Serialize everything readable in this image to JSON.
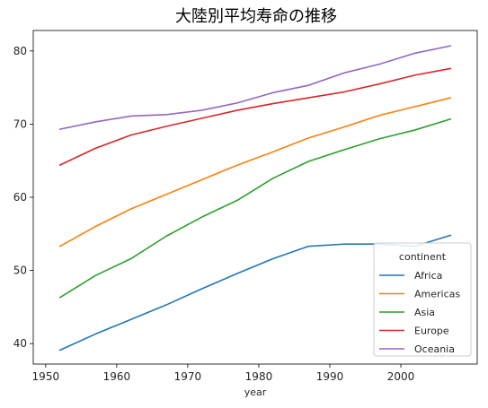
{
  "chart_data": {
    "type": "line",
    "title": "大陸別平均寿命の推移",
    "xlabel": "year",
    "ylabel": "",
    "xlim": [
      1948.25,
      2010.75
    ],
    "ylim": [
      37.2,
      82.8
    ],
    "xticks": [
      1950,
      1960,
      1970,
      1980,
      1990,
      2000
    ],
    "yticks": [
      40,
      50,
      60,
      70,
      80
    ],
    "grid": false,
    "legend": {
      "title": "continent",
      "placement": "lower-right"
    },
    "x": [
      1952,
      1957,
      1962,
      1967,
      1972,
      1977,
      1982,
      1987,
      1992,
      1997,
      2002,
      2007
    ],
    "series": [
      {
        "name": "Africa",
        "color": "#1f77b4",
        "values": [
          39.1,
          41.3,
          43.3,
          45.3,
          47.5,
          49.6,
          51.6,
          53.3,
          53.6,
          53.6,
          53.3,
          54.8
        ]
      },
      {
        "name": "Americas",
        "color": "#ff7f0e",
        "values": [
          53.3,
          56.0,
          58.4,
          60.4,
          62.4,
          64.4,
          66.2,
          68.1,
          69.6,
          71.2,
          72.4,
          73.6
        ]
      },
      {
        "name": "Asia",
        "color": "#2ca02c",
        "values": [
          46.3,
          49.3,
          51.6,
          54.7,
          57.3,
          59.6,
          62.6,
          64.9,
          66.5,
          68.0,
          69.2,
          70.7
        ]
      },
      {
        "name": "Europe",
        "color": "#d62728",
        "values": [
          64.4,
          66.7,
          68.5,
          69.7,
          70.8,
          71.9,
          72.8,
          73.6,
          74.4,
          75.5,
          76.7,
          77.6
        ]
      },
      {
        "name": "Oceania",
        "color": "#9467bd",
        "values": [
          69.3,
          70.3,
          71.1,
          71.3,
          71.9,
          72.9,
          74.3,
          75.3,
          77.0,
          78.2,
          79.7,
          80.7
        ]
      }
    ]
  }
}
